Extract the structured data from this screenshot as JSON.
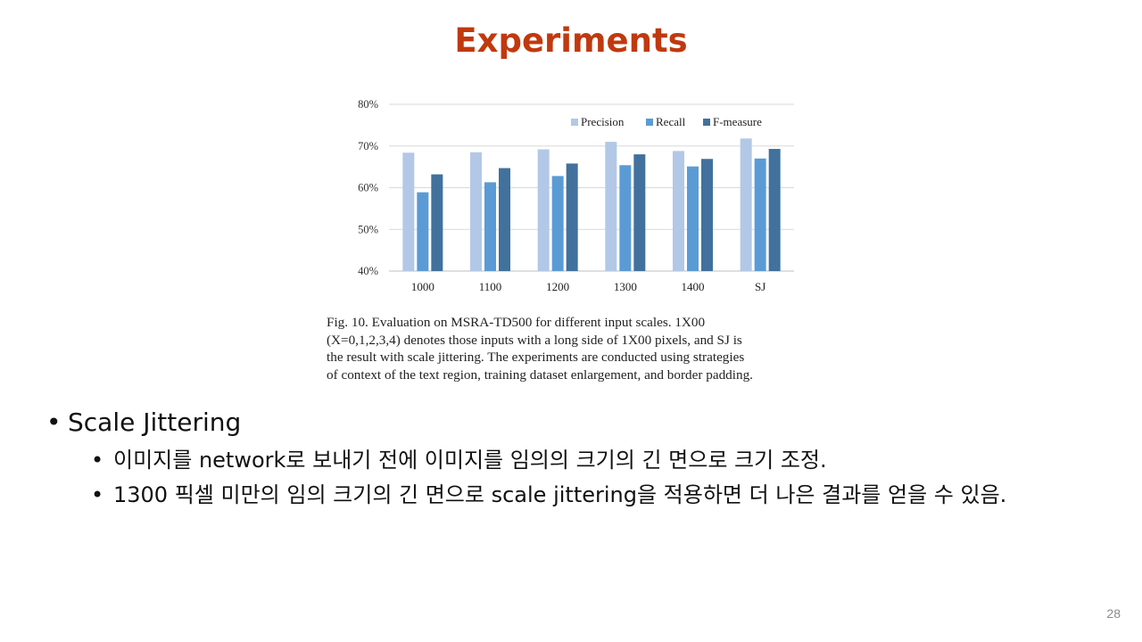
{
  "slide": {
    "title": "Experiments",
    "page_number": "28"
  },
  "figure": {
    "caption_lines": [
      "Fig. 10.  Evaluation on MSRA-TD500 for different input scales. 1X00",
      "(X=0,1,2,3,4) denotes those inputs with a long side of 1X00 pixels, and SJ is",
      "the result with scale jittering. The experiments are conducted using strategies",
      "of context of the text region, training dataset enlargement, and border padding."
    ]
  },
  "bullets": {
    "main": "Scale Jittering",
    "subs": [
      "이미지를 network로 보내기 전에 이미지를 임의의 크기의 긴 면으로 크기 조정.",
      "1300 픽셀 미만의 임의 크기의 긴 면으로 scale jittering을 적용하면 더 나은 결과를 얻을 수 있음."
    ]
  },
  "chart_data": {
    "type": "bar",
    "categories": [
      "1000",
      "1100",
      "1200",
      "1300",
      "1400",
      "SJ"
    ],
    "series": [
      {
        "name": "Precision",
        "color": "#b3c8e6",
        "values": [
          68.4,
          68.5,
          69.2,
          71.0,
          68.8,
          71.8
        ]
      },
      {
        "name": "Recall",
        "color": "#5b9bd5",
        "values": [
          58.9,
          61.3,
          62.8,
          65.4,
          65.1,
          67.0
        ]
      },
      {
        "name": "F-measure",
        "color": "#41719c",
        "values": [
          63.2,
          64.7,
          65.8,
          68.0,
          66.9,
          69.3
        ]
      }
    ],
    "ylim": [
      40,
      80
    ],
    "yticks": [
      "40%",
      "50%",
      "60%",
      "70%",
      "80%"
    ],
    "title": "",
    "xlabel": "",
    "ylabel": "",
    "legend_position": "top-right",
    "grid": true
  }
}
